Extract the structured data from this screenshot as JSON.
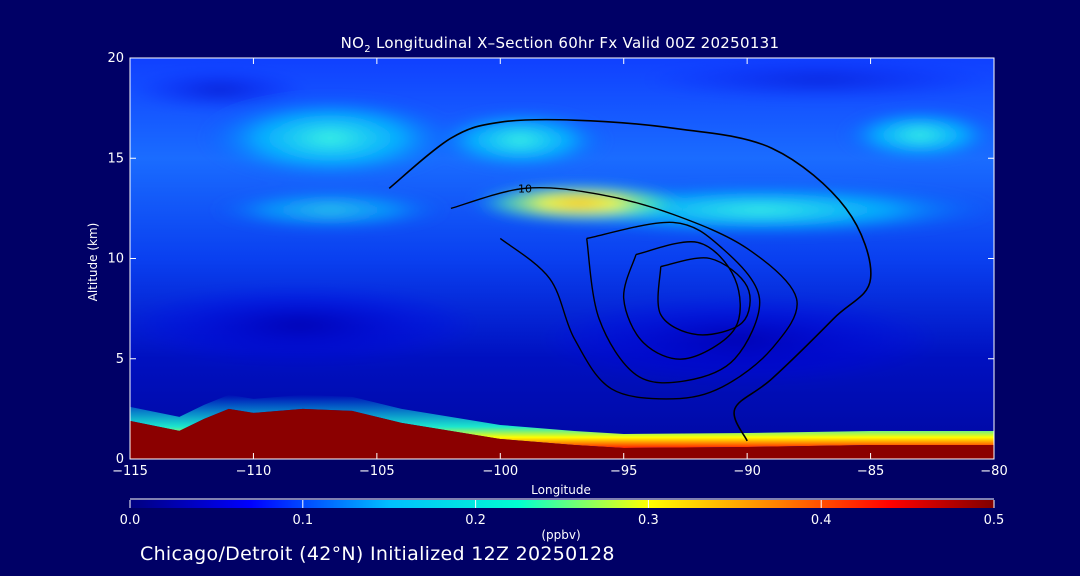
{
  "chart_data": {
    "type": "heatmap",
    "title_prefix": "NO",
    "title_sub": "2",
    "title_rest": " Longitudinal X–Section 60hr  Fx Valid 00Z 20250131",
    "xlabel": "Longitude",
    "ylabel": "Altitude (km)",
    "xlim": [
      -115,
      -80
    ],
    "ylim": [
      0,
      20
    ],
    "x_ticks": [
      -115,
      -110,
      -105,
      -100,
      -95,
      -90,
      -85,
      -80
    ],
    "x_tick_labels": [
      "−115",
      "−110",
      "−105",
      "−100",
      "−95",
      "−90",
      "−85",
      "−80"
    ],
    "y_ticks": [
      0,
      5,
      10,
      15,
      20
    ],
    "y_tick_labels": [
      "0",
      "5",
      "10",
      "15",
      "20"
    ],
    "colorbar": {
      "label": "(ppbv)",
      "range": [
        0.0,
        0.5
      ],
      "ticks": [
        0.0,
        0.1,
        0.2,
        0.3,
        0.4,
        0.5
      ],
      "tick_labels": [
        "0.0",
        "0.1",
        "0.2",
        "0.3",
        "0.4",
        "0.5"
      ]
    },
    "terrain": [
      [
        -115,
        1.9
      ],
      [
        -113,
        1.4
      ],
      [
        -112,
        2.0
      ],
      [
        -111,
        2.5
      ],
      [
        -110,
        2.3
      ],
      [
        -108,
        2.5
      ],
      [
        -106,
        2.4
      ],
      [
        -104,
        1.8
      ],
      [
        -100,
        1.0
      ],
      [
        -97,
        0.7
      ],
      [
        -95,
        0.55
      ],
      [
        -90,
        0.6
      ],
      [
        -85,
        0.7
      ],
      [
        -80,
        0.7
      ]
    ],
    "zero_contour": [
      [
        -104.5,
        13.5
      ],
      [
        -102,
        16
      ],
      [
        -100,
        16.8
      ],
      [
        -97,
        16.9
      ],
      [
        -93,
        16.5
      ],
      [
        -89,
        15.5
      ],
      [
        -86,
        12.5
      ],
      [
        -85,
        9
      ],
      [
        -86.5,
        7
      ],
      [
        -89,
        4
      ],
      [
        -90.5,
        2.5
      ],
      [
        -90,
        0.9
      ]
    ],
    "positive_contours": [
      {
        "label": "10",
        "points": [
          [
            -102,
            12.5
          ],
          [
            -99,
            13.5
          ],
          [
            -96,
            13.2
          ],
          [
            -93,
            12.2
          ],
          [
            -90,
            10.5
          ],
          [
            -88,
            8
          ],
          [
            -89,
            5.5
          ],
          [
            -91,
            3.6
          ],
          [
            -93,
            3
          ],
          [
            -95.5,
            3.5
          ],
          [
            -97,
            6
          ],
          [
            -98,
            9
          ],
          [
            -100,
            11
          ]
        ]
      },
      {
        "label": "",
        "points": [
          [
            -96.5,
            11
          ],
          [
            -93,
            11.8
          ],
          [
            -91,
            10.5
          ],
          [
            -89.5,
            8
          ],
          [
            -90.5,
            5
          ],
          [
            -92.5,
            3.9
          ],
          [
            -94.5,
            4.2
          ],
          [
            -96,
            7
          ],
          [
            -96.5,
            11
          ]
        ]
      },
      {
        "label": "",
        "points": [
          [
            -94.5,
            10.2
          ],
          [
            -92,
            10.8
          ],
          [
            -90.5,
            9
          ],
          [
            -90.5,
            6.5
          ],
          [
            -92.5,
            5
          ],
          [
            -94.2,
            5.8
          ],
          [
            -95,
            8
          ],
          [
            -94.5,
            10.2
          ]
        ]
      },
      {
        "label": "",
        "points": [
          [
            -93.5,
            9.6
          ],
          [
            -91.5,
            10
          ],
          [
            -90,
            8.6
          ],
          [
            -90.2,
            6.8
          ],
          [
            -92,
            6.2
          ],
          [
            -93.5,
            7.2
          ],
          [
            -93.5,
            9.6
          ]
        ]
      }
    ],
    "colormap_stops": [
      "#000080",
      "#0000ff",
      "#00bfff",
      "#00ffd0",
      "#ffff00",
      "#ff8000",
      "#ff0000",
      "#800000"
    ],
    "colors": {
      "background": "#000066",
      "text": "#ffffff",
      "contour": "#000000"
    }
  },
  "caption": "Chicago/Detroit (42°N) Initialized 12Z 20250128"
}
